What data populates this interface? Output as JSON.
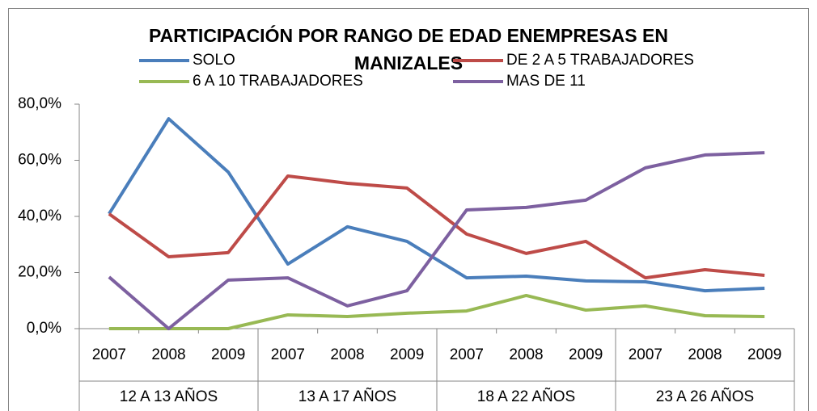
{
  "chart_data": {
    "type": "line",
    "title": [
      "PARTICIPACIÓN POR RANGO DE EDAD ENEMPRESAS EN",
      "MANIZALES"
    ],
    "categories": [
      "2007",
      "2008",
      "2009",
      "2007",
      "2008",
      "2009",
      "2007",
      "2008",
      "2009",
      "2007",
      "2008",
      "2009"
    ],
    "category_groups": [
      "12 A 13 AÑOS",
      "13 A 17 AÑOS",
      "18 A 22 AÑOS",
      "23 A 26 AÑOS"
    ],
    "series": [
      {
        "name": "SOLO",
        "color": "#4a7ebb",
        "values": [
          40.9,
          74.8,
          55.8,
          23.0,
          36.3,
          31.1,
          18.1,
          18.7,
          17.0,
          16.7,
          13.5,
          14.4
        ]
      },
      {
        "name": "DE 2 A 5 TRABAJADORES",
        "color": "#be4b48",
        "values": [
          40.9,
          25.6,
          27.1,
          54.4,
          51.8,
          50.1,
          33.7,
          26.8,
          31.1,
          18.1,
          21.0,
          19.0
        ]
      },
      {
        "name": "6 A 10 TRABAJADORES",
        "color": "#98b954",
        "values": [
          0,
          0,
          0,
          4.9,
          4.3,
          5.5,
          6.3,
          11.8,
          6.6,
          8.1,
          4.6,
          4.3
        ]
      },
      {
        "name": "MAS DE 11",
        "color": "#7d60a0",
        "values": [
          18.4,
          0,
          17.3,
          18.1,
          8.1,
          13.5,
          42.3,
          43.2,
          45.8,
          57.3,
          61.9,
          62.7
        ]
      }
    ],
    "ylim": [
      0,
      80
    ],
    "yticks": [
      {
        "value": 0,
        "label": "0,0%"
      },
      {
        "value": 20,
        "label": "20,0%"
      },
      {
        "value": 40,
        "label": "40,0%"
      },
      {
        "value": 60,
        "label": "60,0%"
      },
      {
        "value": 80,
        "label": "80,0%"
      }
    ],
    "grid": false
  }
}
